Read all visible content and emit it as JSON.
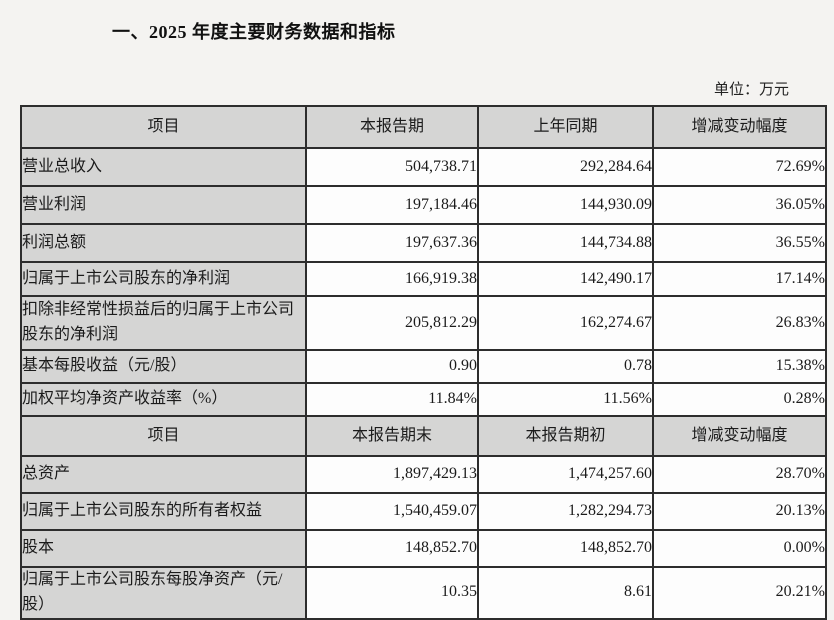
{
  "page": {
    "title": "一、2025 年度主要财务数据和指标",
    "unit_label": "单位：万元"
  },
  "colors": {
    "page_bg": "#f4f3f1",
    "header_bg": "#d5d5d4",
    "label_bg": "#d5d5d4",
    "cell_bg": "#fdfdfd",
    "border": "#2d2d2d",
    "text": "#1b1b1b"
  },
  "table_period": {
    "headers": [
      "项目",
      "本报告期",
      "上年同期",
      "增减变动幅度"
    ],
    "rows": [
      {
        "label": "营业总收入",
        "current": "504,738.71",
        "prior": "292,284.64",
        "change": "72.69%"
      },
      {
        "label": "营业利润",
        "current": "197,184.46",
        "prior": "144,930.09",
        "change": "36.05%"
      },
      {
        "label": "利润总额",
        "current": "197,637.36",
        "prior": "144,734.88",
        "change": "36.55%"
      },
      {
        "label": "归属于上市公司股东的净利润",
        "current": "166,919.38",
        "prior": "142,490.17",
        "change": "17.14%"
      },
      {
        "label": "扣除非经常性损益后的归属于上市公司股东的净利润",
        "current": "205,812.29",
        "prior": "162,274.67",
        "change": "26.83%"
      },
      {
        "label": "基本每股收益（元/股）",
        "current": "0.90",
        "prior": "0.78",
        "change": "15.38%"
      },
      {
        "label": "加权平均净资产收益率（%）",
        "current": "11.84%",
        "prior": "11.56%",
        "change": "0.28%"
      }
    ]
  },
  "table_position": {
    "headers": [
      "项目",
      "本报告期末",
      "本报告期初",
      "增减变动幅度"
    ],
    "rows": [
      {
        "label": "总资产",
        "current": "1,897,429.13",
        "prior": "1,474,257.60",
        "change": "28.70%"
      },
      {
        "label": "归属于上市公司股东的所有者权益",
        "current": "1,540,459.07",
        "prior": "1,282,294.73",
        "change": "20.13%"
      },
      {
        "label": "股本",
        "current": "148,852.70",
        "prior": "148,852.70",
        "change": "0.00%"
      },
      {
        "label": "归属于上市公司股东每股净资产（元/股）",
        "current": "10.35",
        "prior": "8.61",
        "change": "20.21%"
      }
    ]
  }
}
